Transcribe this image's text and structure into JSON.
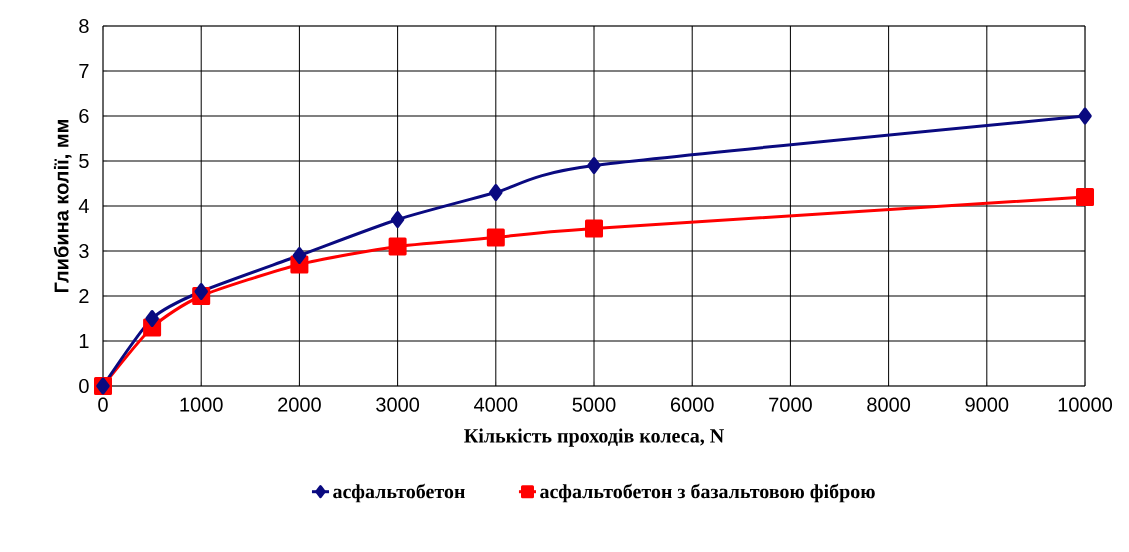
{
  "chart_data": {
    "type": "line",
    "xlabel": "Кількість проходів колеса, N",
    "ylabel": "Глибина колії, мм",
    "x": [
      0,
      500,
      1000,
      2000,
      3000,
      4000,
      5000,
      10000
    ],
    "series": [
      {
        "name": "асфальтобетон",
        "color": "#0a0a80",
        "marker": "diamond",
        "values": [
          0,
          1.5,
          2.1,
          2.9,
          3.7,
          4.3,
          4.9,
          6.0
        ]
      },
      {
        "name": "асфальтобетон з базальтовою фіброю",
        "color": "#ff0000",
        "marker": "square",
        "values": [
          0,
          1.3,
          2.0,
          2.7,
          3.1,
          3.3,
          3.5,
          4.2
        ]
      }
    ],
    "xlim": [
      0,
      10000
    ],
    "xticks": [
      0,
      1000,
      2000,
      3000,
      4000,
      5000,
      6000,
      7000,
      8000,
      9000,
      10000
    ],
    "ylim": [
      0,
      8
    ],
    "yticks": [
      0,
      1,
      2,
      3,
      4,
      5,
      6,
      7,
      8
    ],
    "grid": true,
    "legend": "bottom",
    "line_style": "solid"
  }
}
